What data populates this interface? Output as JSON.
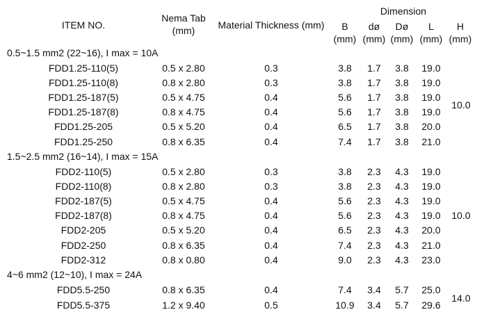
{
  "header": {
    "item_no": "ITEM NO.",
    "nema_tab_line1": "Nema Tab",
    "nema_tab_line2": "(mm)",
    "material_thickness": "Material Thickness (mm)",
    "dimension": "Dimension",
    "cols": [
      {
        "label": "B",
        "unit": "(mm)"
      },
      {
        "label": "dø",
        "unit": "(mm)"
      },
      {
        "label": "Dø",
        "unit": "(mm)"
      },
      {
        "label": "L",
        "unit": "(mm)"
      },
      {
        "label": "H",
        "unit": "(mm)"
      }
    ]
  },
  "groups": [
    {
      "title": "0.5~1.5 mm2 (22~16), I max = 10A",
      "H": "10.0",
      "rows": [
        {
          "item": "FDD1.25-110(5)",
          "tab": "0.5 x 2.80",
          "thk": "0.3",
          "B": "3.8",
          "d": "1.7",
          "D": "3.8",
          "L": "19.0"
        },
        {
          "item": "FDD1.25-110(8)",
          "tab": "0.8 x 2.80",
          "thk": "0.3",
          "B": "3.8",
          "d": "1.7",
          "D": "3.8",
          "L": "19.0"
        },
        {
          "item": "FDD1.25-187(5)",
          "tab": "0.5 x 4.75",
          "thk": "0.4",
          "B": "5.6",
          "d": "1.7",
          "D": "3.8",
          "L": "19.0"
        },
        {
          "item": "FDD1.25-187(8)",
          "tab": "0.8 x 4.75",
          "thk": "0.4",
          "B": "5.6",
          "d": "1.7",
          "D": "3.8",
          "L": "19.0"
        },
        {
          "item": "FDD1.25-205",
          "tab": "0.5 x 5.20",
          "thk": "0.4",
          "B": "6.5",
          "d": "1.7",
          "D": "3.8",
          "L": "20.0"
        },
        {
          "item": "FDD1.25-250",
          "tab": "0.8 x 6.35",
          "thk": "0.4",
          "B": "7.4",
          "d": "1.7",
          "D": "3.8",
          "L": "21.0"
        }
      ]
    },
    {
      "title": "1.5~2.5 mm2 (16~14), I max = 15A",
      "H": "10.0",
      "rows": [
        {
          "item": "FDD2-110(5)",
          "tab": "0.5 x 2.80",
          "thk": "0.3",
          "B": "3.8",
          "d": "2.3",
          "D": "4.3",
          "L": "19.0"
        },
        {
          "item": "FDD2-110(8)",
          "tab": "0.8 x 2.80",
          "thk": "0.3",
          "B": "3.8",
          "d": "2.3",
          "D": "4.3",
          "L": "19.0"
        },
        {
          "item": "FDD2-187(5)",
          "tab": "0.5 x 4.75",
          "thk": "0.4",
          "B": "5.6",
          "d": "2.3",
          "D": "4.3",
          "L": "19.0"
        },
        {
          "item": "FDD2-187(8)",
          "tab": "0.8 x 4.75",
          "thk": "0.4",
          "B": "5.6",
          "d": "2.3",
          "D": "4.3",
          "L": "19.0"
        },
        {
          "item": "FDD2-205",
          "tab": "0.5 x 5.20",
          "thk": "0.4",
          "B": "6.5",
          "d": "2.3",
          "D": "4.3",
          "L": "20.0"
        },
        {
          "item": "FDD2-250",
          "tab": "0.8 x 6.35",
          "thk": "0.4",
          "B": "7.4",
          "d": "2.3",
          "D": "4.3",
          "L": "21.0"
        },
        {
          "item": "FDD2-312",
          "tab": "0.8 x 0.80",
          "thk": "0.4",
          "B": "9.0",
          "d": "2.3",
          "D": "4.3",
          "L": "23.0"
        }
      ]
    },
    {
      "title": "4~6 mm2 (12~10), I max = 24A",
      "H": "14.0",
      "rows": [
        {
          "item": "FDD5.5-250",
          "tab": "0.8 x 6.35",
          "thk": "0.4",
          "B": "7.4",
          "d": "3.4",
          "D": "5.7",
          "L": "25.0"
        },
        {
          "item": "FDD5.5-375",
          "tab": "1.2 x 9.40",
          "thk": "0.5",
          "B": "10.9",
          "d": "3.4",
          "D": "5.7",
          "L": "29.6"
        }
      ]
    }
  ]
}
